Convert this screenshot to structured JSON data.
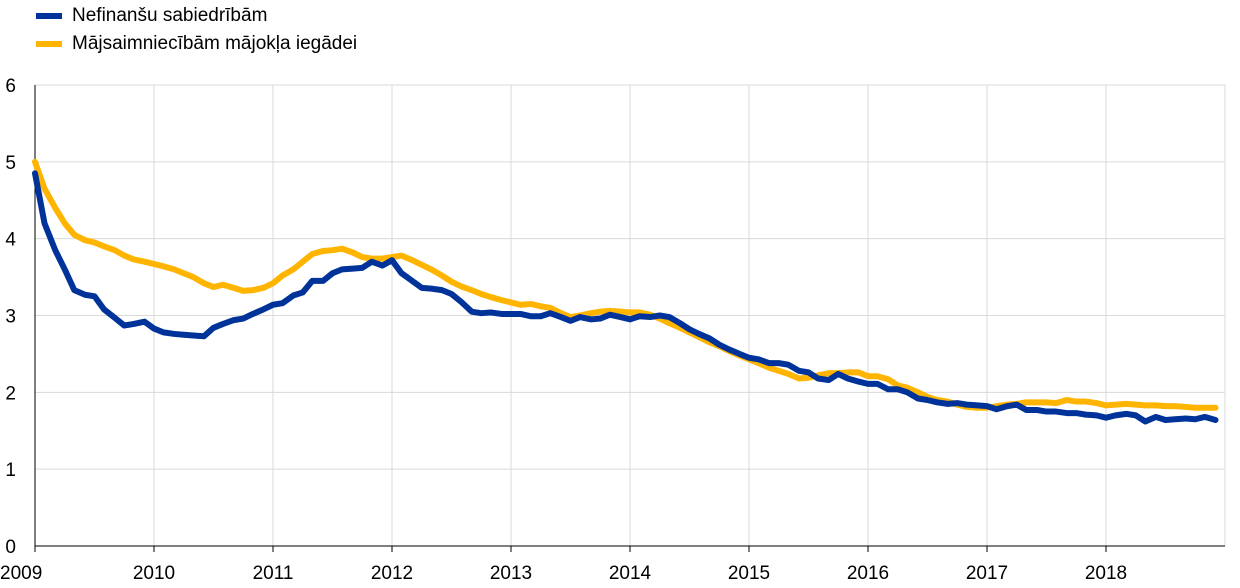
{
  "chart_data": {
    "type": "line",
    "title": "",
    "xlabel": "",
    "ylabel": "",
    "xlim": [
      2009,
      2019
    ],
    "ylim": [
      0,
      6
    ],
    "x_ticks": [
      "2009",
      "2010",
      "2011",
      "2012",
      "2013",
      "2014",
      "2015",
      "2016",
      "2017",
      "2018"
    ],
    "y_ticks": [
      "0",
      "1",
      "2",
      "3",
      "4",
      "5",
      "6"
    ],
    "grid": true,
    "legend_position": "top-left",
    "series": [
      {
        "name": "Nefinanšu sabiedrībām",
        "color": "#003399",
        "points": [
          [
            2009.0,
            4.85
          ],
          [
            2009.08,
            4.2
          ],
          [
            2009.17,
            3.85
          ],
          [
            2009.25,
            3.6
          ],
          [
            2009.33,
            3.33
          ],
          [
            2009.42,
            3.27
          ],
          [
            2009.5,
            3.25
          ],
          [
            2009.58,
            3.08
          ],
          [
            2009.67,
            2.97
          ],
          [
            2009.75,
            2.87
          ],
          [
            2009.83,
            2.89
          ],
          [
            2009.92,
            2.92
          ],
          [
            2010.0,
            2.83
          ],
          [
            2010.08,
            2.78
          ],
          [
            2010.17,
            2.76
          ],
          [
            2010.25,
            2.75
          ],
          [
            2010.33,
            2.74
          ],
          [
            2010.42,
            2.73
          ],
          [
            2010.5,
            2.84
          ],
          [
            2010.58,
            2.89
          ],
          [
            2010.67,
            2.94
          ],
          [
            2010.75,
            2.96
          ],
          [
            2010.83,
            3.02
          ],
          [
            2010.92,
            3.08
          ],
          [
            2011.0,
            3.14
          ],
          [
            2011.08,
            3.16
          ],
          [
            2011.17,
            3.26
          ],
          [
            2011.25,
            3.3
          ],
          [
            2011.33,
            3.45
          ],
          [
            2011.42,
            3.45
          ],
          [
            2011.5,
            3.55
          ],
          [
            2011.58,
            3.6
          ],
          [
            2011.67,
            3.61
          ],
          [
            2011.75,
            3.62
          ],
          [
            2011.83,
            3.7
          ],
          [
            2011.92,
            3.65
          ],
          [
            2012.0,
            3.72
          ],
          [
            2012.08,
            3.55
          ],
          [
            2012.17,
            3.45
          ],
          [
            2012.25,
            3.36
          ],
          [
            2012.33,
            3.35
          ],
          [
            2012.42,
            3.33
          ],
          [
            2012.5,
            3.28
          ],
          [
            2012.58,
            3.18
          ],
          [
            2012.67,
            3.05
          ],
          [
            2012.75,
            3.03
          ],
          [
            2012.83,
            3.04
          ],
          [
            2012.92,
            3.02
          ],
          [
            2013.0,
            3.02
          ],
          [
            2013.08,
            3.02
          ],
          [
            2013.17,
            2.99
          ],
          [
            2013.25,
            2.99
          ],
          [
            2013.33,
            3.03
          ],
          [
            2013.42,
            2.98
          ],
          [
            2013.5,
            2.93
          ],
          [
            2013.58,
            2.98
          ],
          [
            2013.67,
            2.95
          ],
          [
            2013.75,
            2.96
          ],
          [
            2013.83,
            3.01
          ],
          [
            2013.92,
            2.98
          ],
          [
            2014.0,
            2.95
          ],
          [
            2014.08,
            2.99
          ],
          [
            2014.17,
            2.98
          ],
          [
            2014.25,
            3.0
          ],
          [
            2014.33,
            2.98
          ],
          [
            2014.42,
            2.9
          ],
          [
            2014.5,
            2.82
          ],
          [
            2014.58,
            2.76
          ],
          [
            2014.67,
            2.7
          ],
          [
            2014.75,
            2.62
          ],
          [
            2014.83,
            2.56
          ],
          [
            2014.92,
            2.5
          ],
          [
            2015.0,
            2.45
          ],
          [
            2015.08,
            2.43
          ],
          [
            2015.17,
            2.38
          ],
          [
            2015.25,
            2.38
          ],
          [
            2015.33,
            2.36
          ],
          [
            2015.42,
            2.28
          ],
          [
            2015.5,
            2.26
          ],
          [
            2015.58,
            2.18
          ],
          [
            2015.67,
            2.16
          ],
          [
            2015.75,
            2.24
          ],
          [
            2015.83,
            2.18
          ],
          [
            2015.92,
            2.14
          ],
          [
            2016.0,
            2.11
          ],
          [
            2016.08,
            2.11
          ],
          [
            2016.17,
            2.04
          ],
          [
            2016.25,
            2.04
          ],
          [
            2016.33,
            2.0
          ],
          [
            2016.42,
            1.92
          ],
          [
            2016.5,
            1.9
          ],
          [
            2016.58,
            1.87
          ],
          [
            2016.67,
            1.85
          ],
          [
            2016.75,
            1.86
          ],
          [
            2016.83,
            1.84
          ],
          [
            2016.92,
            1.83
          ],
          [
            2017.0,
            1.82
          ],
          [
            2017.08,
            1.78
          ],
          [
            2017.17,
            1.82
          ],
          [
            2017.25,
            1.84
          ],
          [
            2017.33,
            1.77
          ],
          [
            2017.42,
            1.77
          ],
          [
            2017.5,
            1.75
          ],
          [
            2017.58,
            1.75
          ],
          [
            2017.67,
            1.73
          ],
          [
            2017.75,
            1.73
          ],
          [
            2017.83,
            1.71
          ],
          [
            2017.92,
            1.7
          ],
          [
            2018.0,
            1.67
          ],
          [
            2018.08,
            1.7
          ],
          [
            2018.17,
            1.72
          ],
          [
            2018.25,
            1.7
          ],
          [
            2018.33,
            1.62
          ],
          [
            2018.42,
            1.68
          ],
          [
            2018.5,
            1.64
          ],
          [
            2018.58,
            1.65
          ],
          [
            2018.67,
            1.66
          ],
          [
            2018.75,
            1.65
          ],
          [
            2018.83,
            1.68
          ],
          [
            2018.92,
            1.64
          ]
        ]
      },
      {
        "name": "Mājsaimniecībām mājokļa iegādei",
        "color": "#FFB400",
        "points": [
          [
            2009.0,
            5.0
          ],
          [
            2009.08,
            4.65
          ],
          [
            2009.17,
            4.4
          ],
          [
            2009.25,
            4.2
          ],
          [
            2009.33,
            4.05
          ],
          [
            2009.42,
            3.98
          ],
          [
            2009.5,
            3.95
          ],
          [
            2009.58,
            3.9
          ],
          [
            2009.67,
            3.85
          ],
          [
            2009.75,
            3.78
          ],
          [
            2009.83,
            3.73
          ],
          [
            2009.92,
            3.7
          ],
          [
            2010.0,
            3.67
          ],
          [
            2010.08,
            3.64
          ],
          [
            2010.17,
            3.6
          ],
          [
            2010.25,
            3.55
          ],
          [
            2010.33,
            3.5
          ],
          [
            2010.42,
            3.42
          ],
          [
            2010.5,
            3.37
          ],
          [
            2010.58,
            3.4
          ],
          [
            2010.67,
            3.36
          ],
          [
            2010.75,
            3.32
          ],
          [
            2010.83,
            3.33
          ],
          [
            2010.92,
            3.36
          ],
          [
            2011.0,
            3.42
          ],
          [
            2011.08,
            3.52
          ],
          [
            2011.17,
            3.6
          ],
          [
            2011.25,
            3.7
          ],
          [
            2011.33,
            3.8
          ],
          [
            2011.42,
            3.84
          ],
          [
            2011.5,
            3.85
          ],
          [
            2011.58,
            3.87
          ],
          [
            2011.67,
            3.82
          ],
          [
            2011.75,
            3.76
          ],
          [
            2011.83,
            3.74
          ],
          [
            2011.92,
            3.74
          ],
          [
            2012.0,
            3.76
          ],
          [
            2012.08,
            3.78
          ],
          [
            2012.17,
            3.72
          ],
          [
            2012.25,
            3.66
          ],
          [
            2012.33,
            3.6
          ],
          [
            2012.42,
            3.52
          ],
          [
            2012.5,
            3.44
          ],
          [
            2012.58,
            3.38
          ],
          [
            2012.67,
            3.33
          ],
          [
            2012.75,
            3.28
          ],
          [
            2012.83,
            3.24
          ],
          [
            2012.92,
            3.2
          ],
          [
            2013.0,
            3.17
          ],
          [
            2013.08,
            3.14
          ],
          [
            2013.17,
            3.15
          ],
          [
            2013.25,
            3.12
          ],
          [
            2013.33,
            3.1
          ],
          [
            2013.42,
            3.03
          ],
          [
            2013.5,
            2.98
          ],
          [
            2013.58,
            3.0
          ],
          [
            2013.67,
            3.03
          ],
          [
            2013.75,
            3.05
          ],
          [
            2013.83,
            3.06
          ],
          [
            2013.92,
            3.05
          ],
          [
            2014.0,
            3.04
          ],
          [
            2014.08,
            3.04
          ],
          [
            2014.17,
            3.01
          ],
          [
            2014.25,
            2.96
          ],
          [
            2014.33,
            2.9
          ],
          [
            2014.42,
            2.84
          ],
          [
            2014.5,
            2.78
          ],
          [
            2014.58,
            2.72
          ],
          [
            2014.67,
            2.65
          ],
          [
            2014.75,
            2.6
          ],
          [
            2014.83,
            2.54
          ],
          [
            2014.92,
            2.48
          ],
          [
            2015.0,
            2.43
          ],
          [
            2015.08,
            2.38
          ],
          [
            2015.17,
            2.32
          ],
          [
            2015.25,
            2.28
          ],
          [
            2015.33,
            2.24
          ],
          [
            2015.42,
            2.18
          ],
          [
            2015.5,
            2.19
          ],
          [
            2015.58,
            2.22
          ],
          [
            2015.67,
            2.25
          ],
          [
            2015.75,
            2.25
          ],
          [
            2015.83,
            2.26
          ],
          [
            2015.92,
            2.26
          ],
          [
            2016.0,
            2.21
          ],
          [
            2016.08,
            2.21
          ],
          [
            2016.17,
            2.17
          ],
          [
            2016.25,
            2.09
          ],
          [
            2016.33,
            2.06
          ],
          [
            2016.42,
            2.0
          ],
          [
            2016.5,
            1.94
          ],
          [
            2016.58,
            1.9
          ],
          [
            2016.67,
            1.88
          ],
          [
            2016.75,
            1.84
          ],
          [
            2016.83,
            1.81
          ],
          [
            2016.92,
            1.8
          ],
          [
            2017.0,
            1.8
          ],
          [
            2017.08,
            1.82
          ],
          [
            2017.17,
            1.84
          ],
          [
            2017.25,
            1.85
          ],
          [
            2017.33,
            1.87
          ],
          [
            2017.42,
            1.87
          ],
          [
            2017.5,
            1.87
          ],
          [
            2017.58,
            1.86
          ],
          [
            2017.67,
            1.9
          ],
          [
            2017.75,
            1.88
          ],
          [
            2017.83,
            1.88
          ],
          [
            2017.92,
            1.86
          ],
          [
            2018.0,
            1.83
          ],
          [
            2018.08,
            1.84
          ],
          [
            2018.17,
            1.85
          ],
          [
            2018.25,
            1.84
          ],
          [
            2018.33,
            1.83
          ],
          [
            2018.42,
            1.83
          ],
          [
            2018.5,
            1.82
          ],
          [
            2018.58,
            1.82
          ],
          [
            2018.67,
            1.81
          ],
          [
            2018.75,
            1.8
          ],
          [
            2018.83,
            1.8
          ],
          [
            2018.92,
            1.8
          ]
        ]
      }
    ]
  }
}
